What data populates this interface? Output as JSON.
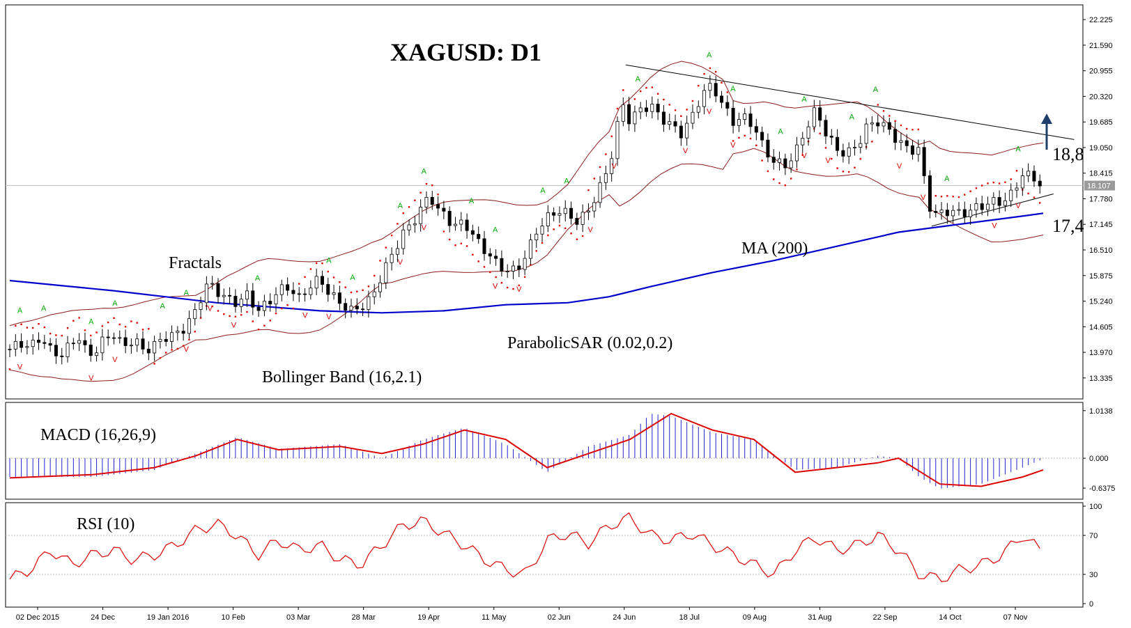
{
  "chart_data": {
    "title": "XAGUSD: D1",
    "type": "candlestick",
    "annotations": {
      "fractals": "Fractals",
      "bollinger": "Bollinger Band (16,2.1)",
      "sar": "ParabolicSAR (0.02,0.2)",
      "ma": "MA (200)",
      "resistance_level": "18,8",
      "support_level": "17,4"
    },
    "price_axis": {
      "range": [
        12.9,
        22.4
      ],
      "ticks": [
        "22.225",
        "21.590",
        "20.955",
        "20.320",
        "19.685",
        "19.050",
        "18.415",
        "17.780",
        "17.145",
        "16.510",
        "15.875",
        "15.240",
        "14.605",
        "13.970",
        "13.335"
      ],
      "current_price": "18.107"
    },
    "x_labels": [
      "02 Dec 2015",
      "24 Dec",
      "19 Jan 2016",
      "10 Feb",
      "03 Mar",
      "28 Mar",
      "19 Apr",
      "11 May",
      "02 Jun",
      "24 Jun",
      "18 Jul",
      "09 Aug",
      "31 Aug",
      "22 Sep",
      "14 Oct",
      "07 Nov"
    ],
    "price_series": [
      {
        "t": 0,
        "v": 14.05
      },
      {
        "t": 0.5,
        "v": 14.2
      },
      {
        "t": 1,
        "v": 14.1
      },
      {
        "t": 1.5,
        "v": 14.35
      },
      {
        "t": 2,
        "v": 14.0
      },
      {
        "t": 2.5,
        "v": 13.9
      },
      {
        "t": 3,
        "v": 14.2
      },
      {
        "t": 3.3,
        "v": 14.4
      },
      {
        "t": 3.6,
        "v": 14.05
      },
      {
        "t": 4,
        "v": 13.9
      },
      {
        "t": 4.5,
        "v": 14.25
      },
      {
        "t": 5,
        "v": 14.45
      },
      {
        "t": 5.5,
        "v": 14.1
      },
      {
        "t": 6,
        "v": 14.3
      },
      {
        "t": 6.5,
        "v": 14.0
      },
      {
        "t": 7,
        "v": 14.15
      },
      {
        "t": 7.5,
        "v": 14.35
      },
      {
        "t": 8,
        "v": 14.4
      },
      {
        "t": 8.5,
        "v": 14.6
      },
      {
        "t": 9,
        "v": 15.0
      },
      {
        "t": 9.3,
        "v": 15.4
      },
      {
        "t": 9.6,
        "v": 15.7
      },
      {
        "t": 10,
        "v": 15.5
      },
      {
        "t": 10.5,
        "v": 15.3
      },
      {
        "t": 11,
        "v": 15.2
      },
      {
        "t": 11.5,
        "v": 15.4
      },
      {
        "t": 12,
        "v": 15.0
      },
      {
        "t": 12.5,
        "v": 15.2
      },
      {
        "t": 13,
        "v": 15.5
      },
      {
        "t": 13.5,
        "v": 15.6
      },
      {
        "t": 14,
        "v": 15.3
      },
      {
        "t": 14.5,
        "v": 15.6
      },
      {
        "t": 15,
        "v": 15.8
      },
      {
        "t": 15.5,
        "v": 15.4
      },
      {
        "t": 16,
        "v": 15.2
      },
      {
        "t": 16.5,
        "v": 15.0
      },
      {
        "t": 17,
        "v": 15.1
      },
      {
        "t": 17.5,
        "v": 15.3
      },
      {
        "t": 18,
        "v": 15.9
      },
      {
        "t": 18.5,
        "v": 16.4
      },
      {
        "t": 19,
        "v": 16.9
      },
      {
        "t": 19.5,
        "v": 17.2
      },
      {
        "t": 20,
        "v": 17.6
      },
      {
        "t": 20.3,
        "v": 17.9
      },
      {
        "t": 20.7,
        "v": 17.5
      },
      {
        "t": 21,
        "v": 17.4
      },
      {
        "t": 21.5,
        "v": 17.1
      },
      {
        "t": 22,
        "v": 17.2
      },
      {
        "t": 22.5,
        "v": 16.8
      },
      {
        "t": 23,
        "v": 16.5
      },
      {
        "t": 23.5,
        "v": 16.2
      },
      {
        "t": 24,
        "v": 16.0
      },
      {
        "t": 24.5,
        "v": 16.0
      },
      {
        "t": 25,
        "v": 16.4
      },
      {
        "t": 25.5,
        "v": 17.0
      },
      {
        "t": 26,
        "v": 17.3
      },
      {
        "t": 26.5,
        "v": 17.5
      },
      {
        "t": 27,
        "v": 17.4
      },
      {
        "t": 27.5,
        "v": 17.2
      },
      {
        "t": 28,
        "v": 17.5
      },
      {
        "t": 28.5,
        "v": 18.0
      },
      {
        "t": 29,
        "v": 18.6
      },
      {
        "t": 29.3,
        "v": 19.3
      },
      {
        "t": 29.6,
        "v": 20.2
      },
      {
        "t": 30,
        "v": 19.7
      },
      {
        "t": 30.5,
        "v": 20.0
      },
      {
        "t": 31,
        "v": 20.1
      },
      {
        "t": 31.5,
        "v": 19.8
      },
      {
        "t": 32,
        "v": 19.6
      },
      {
        "t": 32.5,
        "v": 19.4
      },
      {
        "t": 33,
        "v": 19.8
      },
      {
        "t": 33.5,
        "v": 20.4
      },
      {
        "t": 34,
        "v": 20.6
      },
      {
        "t": 34.5,
        "v": 20.1
      },
      {
        "t": 35,
        "v": 19.7
      },
      {
        "t": 35.5,
        "v": 19.8
      },
      {
        "t": 36,
        "v": 19.6
      },
      {
        "t": 36.5,
        "v": 19.0
      },
      {
        "t": 37,
        "v": 18.7
      },
      {
        "t": 37.5,
        "v": 18.6
      },
      {
        "t": 38,
        "v": 18.9
      },
      {
        "t": 38.5,
        "v": 19.5
      },
      {
        "t": 39,
        "v": 20.0
      },
      {
        "t": 39.5,
        "v": 19.4
      },
      {
        "t": 40,
        "v": 19.0
      },
      {
        "t": 40.5,
        "v": 18.9
      },
      {
        "t": 41,
        "v": 19.1
      },
      {
        "t": 41.5,
        "v": 19.6
      },
      {
        "t": 42,
        "v": 19.7
      },
      {
        "t": 42.5,
        "v": 19.5
      },
      {
        "t": 43,
        "v": 19.2
      },
      {
        "t": 43.5,
        "v": 19.0
      },
      {
        "t": 44,
        "v": 19.0
      },
      {
        "t": 44.3,
        "v": 18.1
      },
      {
        "t": 44.6,
        "v": 17.4
      },
      {
        "t": 45,
        "v": 17.4
      },
      {
        "t": 45.5,
        "v": 17.5
      },
      {
        "t": 46,
        "v": 17.4
      },
      {
        "t": 46.5,
        "v": 17.5
      },
      {
        "t": 47,
        "v": 17.6
      },
      {
        "t": 47.5,
        "v": 17.7
      },
      {
        "t": 48,
        "v": 17.7
      },
      {
        "t": 48.5,
        "v": 17.9
      },
      {
        "t": 49,
        "v": 18.4
      },
      {
        "t": 49.5,
        "v": 18.3
      },
      {
        "t": 50,
        "v": 18.1
      }
    ],
    "ma200": [
      {
        "t": 0,
        "v": 15.75
      },
      {
        "t": 5,
        "v": 15.5
      },
      {
        "t": 10,
        "v": 15.2
      },
      {
        "t": 15,
        "v": 15.0
      },
      {
        "t": 18,
        "v": 14.95
      },
      {
        "t": 21,
        "v": 15.0
      },
      {
        "t": 24,
        "v": 15.15
      },
      {
        "t": 27,
        "v": 15.2
      },
      {
        "t": 29,
        "v": 15.35
      },
      {
        "t": 31,
        "v": 15.6
      },
      {
        "t": 34,
        "v": 15.95
      },
      {
        "t": 37,
        "v": 16.25
      },
      {
        "t": 40,
        "v": 16.6
      },
      {
        "t": 43,
        "v": 16.95
      },
      {
        "t": 46,
        "v": 17.15
      },
      {
        "t": 49,
        "v": 17.35
      },
      {
        "t": 50,
        "v": 17.42
      }
    ],
    "resistance_line": [
      {
        "t": 29.8,
        "v": 21.1
      },
      {
        "t": 51.5,
        "v": 19.25
      }
    ],
    "support_line": [
      {
        "t": 44.6,
        "v": 17.1
      },
      {
        "t": 50.5,
        "v": 17.9
      }
    ],
    "macd": {
      "label": "MACD (16,26,9)",
      "range": [
        -0.8,
        1.1
      ],
      "ticks": [
        "1.0138",
        "0.000",
        "-0.6375"
      ],
      "histogram": [
        {
          "t": 0,
          "v": -0.4
        },
        {
          "t": 4,
          "v": -0.4
        },
        {
          "t": 7,
          "v": -0.25
        },
        {
          "t": 9,
          "v": 0.1
        },
        {
          "t": 11,
          "v": 0.45
        },
        {
          "t": 13,
          "v": 0.2
        },
        {
          "t": 16,
          "v": 0.3
        },
        {
          "t": 18,
          "v": 0.0
        },
        {
          "t": 20,
          "v": 0.4
        },
        {
          "t": 22,
          "v": 0.65
        },
        {
          "t": 24,
          "v": 0.3
        },
        {
          "t": 26,
          "v": -0.3
        },
        {
          "t": 28,
          "v": 0.25
        },
        {
          "t": 30,
          "v": 0.5
        },
        {
          "t": 31,
          "v": 0.95
        },
        {
          "t": 32,
          "v": 0.9
        },
        {
          "t": 34,
          "v": 0.55
        },
        {
          "t": 36,
          "v": 0.4
        },
        {
          "t": 38,
          "v": -0.25
        },
        {
          "t": 40,
          "v": -0.2
        },
        {
          "t": 42,
          "v": 0.05
        },
        {
          "t": 43,
          "v": 0.0
        },
        {
          "t": 44,
          "v": -0.4
        },
        {
          "t": 45,
          "v": -0.65
        },
        {
          "t": 47,
          "v": -0.55
        },
        {
          "t": 49,
          "v": -0.2
        },
        {
          "t": 50,
          "v": -0.02
        }
      ],
      "signal": [
        {
          "t": 0,
          "v": -0.42
        },
        {
          "t": 4,
          "v": -0.35
        },
        {
          "t": 7,
          "v": -0.2
        },
        {
          "t": 9,
          "v": 0.05
        },
        {
          "t": 11,
          "v": 0.4
        },
        {
          "t": 13,
          "v": 0.18
        },
        {
          "t": 16,
          "v": 0.25
        },
        {
          "t": 18,
          "v": 0.1
        },
        {
          "t": 20,
          "v": 0.3
        },
        {
          "t": 22,
          "v": 0.6
        },
        {
          "t": 24,
          "v": 0.4
        },
        {
          "t": 26,
          "v": -0.2
        },
        {
          "t": 28,
          "v": 0.1
        },
        {
          "t": 30,
          "v": 0.4
        },
        {
          "t": 32,
          "v": 0.95
        },
        {
          "t": 34,
          "v": 0.6
        },
        {
          "t": 36,
          "v": 0.4
        },
        {
          "t": 38,
          "v": -0.3
        },
        {
          "t": 40,
          "v": -0.2
        },
        {
          "t": 42,
          "v": -0.1
        },
        {
          "t": 43,
          "v": 0.0
        },
        {
          "t": 45,
          "v": -0.55
        },
        {
          "t": 47,
          "v": -0.6
        },
        {
          "t": 49,
          "v": -0.4
        },
        {
          "t": 50,
          "v": -0.25
        }
      ]
    },
    "rsi": {
      "label": "RSI (10)",
      "range": [
        0,
        100
      ],
      "ticks": [
        "100",
        "70",
        "30",
        "0"
      ],
      "series": [
        {
          "t": 0,
          "v": 25
        },
        {
          "t": 1,
          "v": 35
        },
        {
          "t": 2,
          "v": 55
        },
        {
          "t": 3,
          "v": 40
        },
        {
          "t": 4,
          "v": 50
        },
        {
          "t": 5,
          "v": 55
        },
        {
          "t": 6,
          "v": 45
        },
        {
          "t": 7,
          "v": 50
        },
        {
          "t": 8,
          "v": 60
        },
        {
          "t": 9,
          "v": 75
        },
        {
          "t": 10,
          "v": 82
        },
        {
          "t": 11,
          "v": 70
        },
        {
          "t": 12,
          "v": 50
        },
        {
          "t": 13,
          "v": 65
        },
        {
          "t": 14,
          "v": 55
        },
        {
          "t": 15,
          "v": 60
        },
        {
          "t": 16,
          "v": 45
        },
        {
          "t": 17,
          "v": 40
        },
        {
          "t": 18,
          "v": 60
        },
        {
          "t": 19,
          "v": 80
        },
        {
          "t": 20,
          "v": 85
        },
        {
          "t": 21,
          "v": 72
        },
        {
          "t": 22,
          "v": 60
        },
        {
          "t": 23,
          "v": 45
        },
        {
          "t": 24,
          "v": 35
        },
        {
          "t": 25,
          "v": 30
        },
        {
          "t": 26,
          "v": 65
        },
        {
          "t": 27,
          "v": 72
        },
        {
          "t": 28,
          "v": 62
        },
        {
          "t": 29,
          "v": 80
        },
        {
          "t": 30,
          "v": 88
        },
        {
          "t": 31,
          "v": 70
        },
        {
          "t": 32,
          "v": 65
        },
        {
          "t": 33,
          "v": 72
        },
        {
          "t": 34,
          "v": 60
        },
        {
          "t": 35,
          "v": 50
        },
        {
          "t": 36,
          "v": 40
        },
        {
          "t": 37,
          "v": 30
        },
        {
          "t": 38,
          "v": 55
        },
        {
          "t": 39,
          "v": 68
        },
        {
          "t": 40,
          "v": 55
        },
        {
          "t": 41,
          "v": 60
        },
        {
          "t": 42,
          "v": 70
        },
        {
          "t": 43,
          "v": 55
        },
        {
          "t": 44,
          "v": 30
        },
        {
          "t": 45,
          "v": 25
        },
        {
          "t": 46,
          "v": 35
        },
        {
          "t": 47,
          "v": 40
        },
        {
          "t": 48,
          "v": 50
        },
        {
          "t": 49,
          "v": 70
        },
        {
          "t": 50,
          "v": 52
        }
      ]
    },
    "colors": {
      "bull": "#ffffff",
      "bear": "#000000",
      "ma": "#0000cc",
      "bollinger": "#8b1a1a",
      "sar": "#dd0000",
      "fractal_up": "#00aa00",
      "fractal_down": "#dd0000",
      "macd_hist": "#2222cc",
      "signal": "#dd0000",
      "rsi": "#dd0000",
      "arrow": "#1f3f6b"
    }
  }
}
